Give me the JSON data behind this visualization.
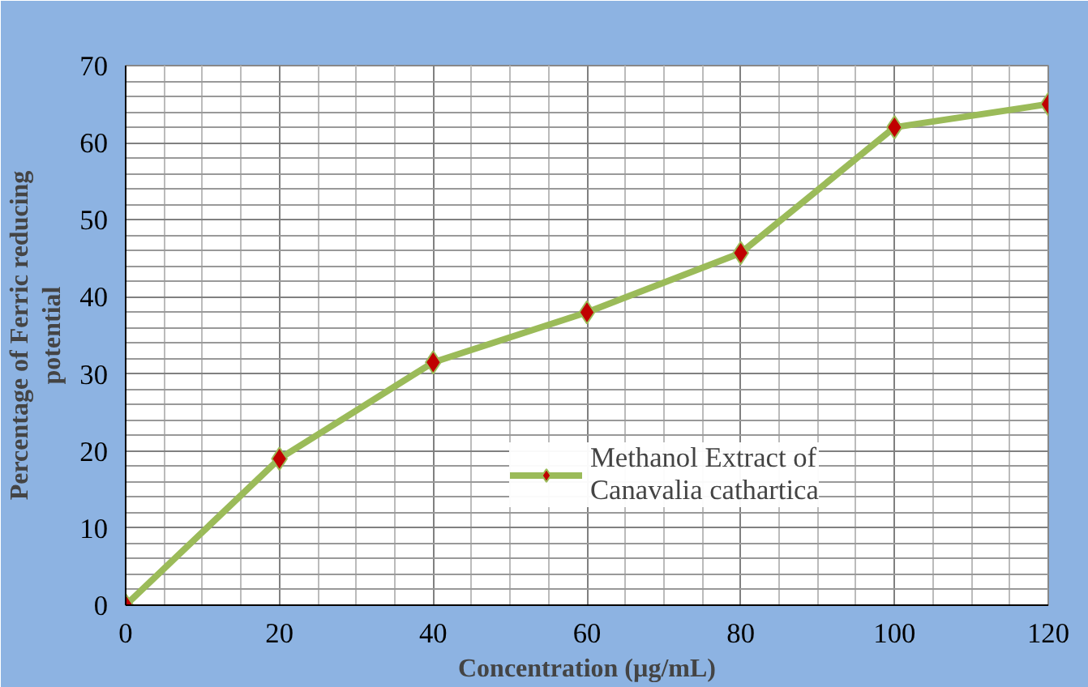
{
  "chart_data": {
    "type": "line",
    "xlabel": "Concentration (µg/mL)",
    "ylabel": "Percentage of Ferric reducing potential",
    "x": [
      0,
      20,
      40,
      60,
      80,
      100,
      120
    ],
    "series": [
      {
        "name": "Methanol Extract of Canavalia cathartica",
        "color": "#9bbb59",
        "values": [
          0,
          19,
          31.5,
          38,
          45.7,
          62,
          65
        ]
      }
    ],
    "xlim": [
      0,
      120
    ],
    "ylim": [
      0,
      70
    ],
    "xticks": [
      0,
      20,
      40,
      60,
      80,
      100,
      120
    ],
    "yticks": [
      0,
      10,
      20,
      30,
      40,
      50,
      60,
      70
    ],
    "grid": true,
    "legend": "right",
    "marker": "diamond",
    "line_style": "solid"
  }
}
